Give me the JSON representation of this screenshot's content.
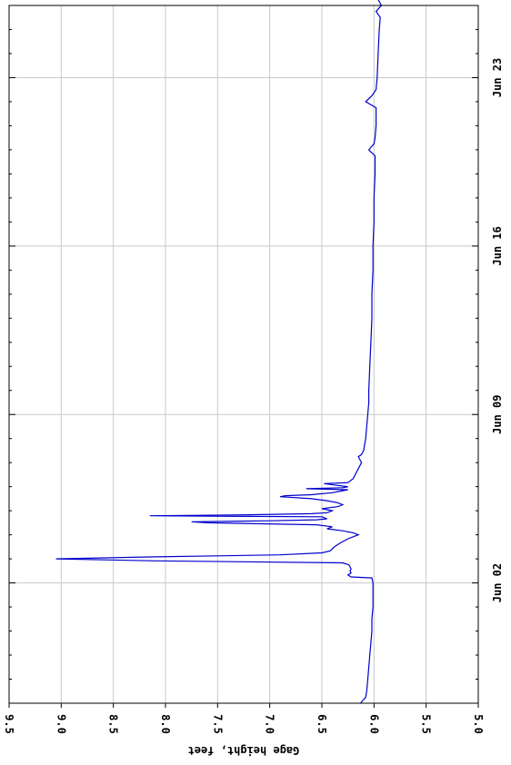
{
  "chart_data": {
    "type": "line",
    "orientation": "rotated-90",
    "title": "",
    "xlabel": "",
    "ylabel": "Gage height, feet",
    "ylim": [
      5.0,
      9.5
    ],
    "xlim": [
      "2020-05-28",
      "2020-06-26"
    ],
    "grid": true,
    "legend": "none",
    "y_ticks": [
      {
        "value": 5.0,
        "label": "5.0"
      },
      {
        "value": 5.5,
        "label": "5.5"
      },
      {
        "value": 6.0,
        "label": "6.0"
      },
      {
        "value": 6.5,
        "label": "6.5"
      },
      {
        "value": 7.0,
        "label": "7.0"
      },
      {
        "value": 7.5,
        "label": "7.5"
      },
      {
        "value": 8.0,
        "label": "8.0"
      },
      {
        "value": 8.5,
        "label": "8.5"
      },
      {
        "value": 9.0,
        "label": "9.0"
      },
      {
        "value": 9.5,
        "label": "9.5"
      }
    ],
    "x_ticks": [
      {
        "value": "2020-06-02",
        "label": "Jun 02"
      },
      {
        "value": "2020-06-09",
        "label": "Jun 09"
      },
      {
        "value": "2020-06-16",
        "label": "Jun 16"
      },
      {
        "value": "2020-06-23",
        "label": "Jun 23"
      }
    ],
    "series": [
      {
        "color": "#0000cc",
        "points": [
          [
            "2020-05-28 00:00",
            6.13
          ],
          [
            "2020-05-28 06:00",
            6.08
          ],
          [
            "2020-05-28 12:00",
            6.07
          ],
          [
            "2020-05-29 00:00",
            6.06
          ],
          [
            "2020-05-29 12:00",
            6.05
          ],
          [
            "2020-05-30 00:00",
            6.04
          ],
          [
            "2020-05-30 12:00",
            6.03
          ],
          [
            "2020-05-31 00:00",
            6.02
          ],
          [
            "2020-05-31 12:00",
            6.02
          ],
          [
            "2020-06-01 00:00",
            6.01
          ],
          [
            "2020-06-01 12:00",
            6.01
          ],
          [
            "2020-06-02 00:00",
            6.01
          ],
          [
            "2020-06-02 05:00",
            6.02
          ],
          [
            "2020-06-02 06:00",
            6.22
          ],
          [
            "2020-06-02 08:00",
            6.25
          ],
          [
            "2020-06-02 10:00",
            6.22
          ],
          [
            "2020-06-02 12:00",
            6.23
          ],
          [
            "2020-06-02 14:00",
            6.22
          ],
          [
            "2020-06-02 18:00",
            6.24
          ],
          [
            "2020-06-02 20:00",
            6.3
          ],
          [
            "2020-06-02 22:00",
            8.1
          ],
          [
            "2020-06-03 00:00",
            9.05
          ],
          [
            "2020-06-03 02:00",
            8.1
          ],
          [
            "2020-06-03 04:00",
            6.9
          ],
          [
            "2020-06-03 06:00",
            6.5
          ],
          [
            "2020-06-03 08:00",
            6.42
          ],
          [
            "2020-06-03 12:00",
            6.38
          ],
          [
            "2020-06-03 16:00",
            6.32
          ],
          [
            "2020-06-03 20:00",
            6.25
          ],
          [
            "2020-06-03 22:00",
            6.2
          ],
          [
            "2020-06-04 00:00",
            6.15
          ],
          [
            "2020-06-04 02:00",
            6.2
          ],
          [
            "2020-06-04 04:00",
            6.3
          ],
          [
            "2020-06-04 06:00",
            6.45
          ],
          [
            "2020-06-04 08:00",
            6.4
          ],
          [
            "2020-06-04 10:00",
            6.55
          ],
          [
            "2020-06-04 12:00",
            7.6
          ],
          [
            "2020-06-04 13:00",
            7.75
          ],
          [
            "2020-06-04 14:00",
            7.0
          ],
          [
            "2020-06-04 15:00",
            6.55
          ],
          [
            "2020-06-04 16:00",
            6.45
          ],
          [
            "2020-06-04 18:00",
            6.5
          ],
          [
            "2020-06-04 19:00",
            8.15
          ],
          [
            "2020-06-04 20:00",
            7.2
          ],
          [
            "2020-06-04 21:00",
            6.6
          ],
          [
            "2020-06-04 22:00",
            6.45
          ],
          [
            "2020-06-05 00:00",
            6.4
          ],
          [
            "2020-06-05 02:00",
            6.5
          ],
          [
            "2020-06-05 04:00",
            6.35
          ],
          [
            "2020-06-05 06:00",
            6.3
          ],
          [
            "2020-06-05 08:00",
            6.35
          ],
          [
            "2020-06-05 10:00",
            6.45
          ],
          [
            "2020-06-05 12:00",
            6.6
          ],
          [
            "2020-06-05 14:00",
            6.9
          ],
          [
            "2020-06-05 15:00",
            6.85
          ],
          [
            "2020-06-05 16:00",
            6.6
          ],
          [
            "2020-06-05 18:00",
            6.4
          ],
          [
            "2020-06-05 20:00",
            6.3
          ],
          [
            "2020-06-05 21:00",
            6.25
          ],
          [
            "2020-06-05 22:00",
            6.65
          ],
          [
            "2020-06-05 23:00",
            6.3
          ],
          [
            "2020-06-06 00:00",
            6.25
          ],
          [
            "2020-06-06 03:00",
            6.48
          ],
          [
            "2020-06-06 04:00",
            6.25
          ],
          [
            "2020-06-06 08:00",
            6.2
          ],
          [
            "2020-06-06 12:00",
            6.18
          ],
          [
            "2020-06-06 18:00",
            6.15
          ],
          [
            "2020-06-07 00:00",
            6.12
          ],
          [
            "2020-06-07 06:00",
            6.15
          ],
          [
            "2020-06-07 08:00",
            6.12
          ],
          [
            "2020-06-07 12:00",
            6.1
          ],
          [
            "2020-06-08 00:00",
            6.08
          ],
          [
            "2020-06-08 12:00",
            6.07
          ],
          [
            "2020-06-09 00:00",
            6.06
          ],
          [
            "2020-06-09 12:00",
            6.05
          ],
          [
            "2020-06-10 00:00",
            6.05
          ],
          [
            "2020-06-11 00:00",
            6.04
          ],
          [
            "2020-06-12 00:00",
            6.03
          ],
          [
            "2020-06-13 00:00",
            6.02
          ],
          [
            "2020-06-14 00:00",
            6.02
          ],
          [
            "2020-06-15 00:00",
            6.01
          ],
          [
            "2020-06-16 00:00",
            6.01
          ],
          [
            "2020-06-17 00:00",
            6.0
          ],
          [
            "2020-06-18 00:00",
            6.0
          ],
          [
            "2020-06-19 00:00",
            5.99
          ],
          [
            "2020-06-19 18:00",
            5.99
          ],
          [
            "2020-06-20 00:00",
            6.05
          ],
          [
            "2020-06-20 06:00",
            6.0
          ],
          [
            "2020-06-20 12:00",
            5.99
          ],
          [
            "2020-06-21 00:00",
            5.98
          ],
          [
            "2020-06-21 18:00",
            5.98
          ],
          [
            "2020-06-22 00:00",
            6.08
          ],
          [
            "2020-06-22 06:00",
            6.02
          ],
          [
            "2020-06-22 12:00",
            5.98
          ],
          [
            "2020-06-23 00:00",
            5.97
          ],
          [
            "2020-06-24 00:00",
            5.96
          ],
          [
            "2020-06-25 00:00",
            5.95
          ],
          [
            "2020-06-25 12:00",
            5.94
          ],
          [
            "2020-06-25 18:00",
            5.98
          ],
          [
            "2020-06-26 00:00",
            5.93
          ],
          [
            "2020-06-26 06:00",
            5.96
          ],
          [
            "2020-06-26 12:00",
            5.95
          ]
        ]
      }
    ]
  }
}
